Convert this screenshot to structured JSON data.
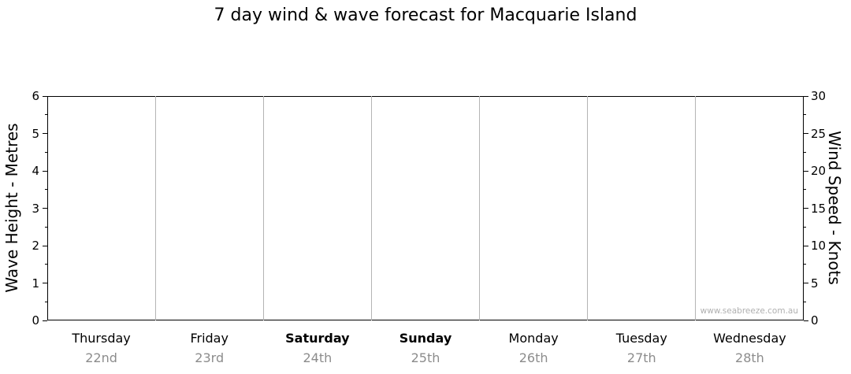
{
  "title": "7 day wind & wave forecast for Macquarie Island",
  "watermark": "www.seabreeze.com.au",
  "colors": {
    "axis": "#000000",
    "gridline": "#b4b4b4",
    "day_text": "#000000",
    "date_text": "#8c8c8c",
    "watermark_text": "#b0b0b0",
    "background": "#ffffff"
  },
  "chart_data": {
    "type": "line",
    "title": "7 day wind & wave forecast for Macquarie Island",
    "series": [],
    "days": [
      {
        "name": "Thursday",
        "date": "22nd",
        "bold": false
      },
      {
        "name": "Friday",
        "date": "23rd",
        "bold": false
      },
      {
        "name": "Saturday",
        "date": "24th",
        "bold": true
      },
      {
        "name": "Sunday",
        "date": "25th",
        "bold": true
      },
      {
        "name": "Monday",
        "date": "26th",
        "bold": false
      },
      {
        "name": "Tuesday",
        "date": "27th",
        "bold": false
      },
      {
        "name": "Wednesday",
        "date": "28th",
        "bold": false
      }
    ],
    "y_left": {
      "label": "Wave Height - Metres",
      "min": 0,
      "max": 6,
      "ticks": [
        0,
        1,
        2,
        3,
        4,
        5,
        6
      ]
    },
    "y_right": {
      "label": "Wind Speed - Knots",
      "min": 0,
      "max": 30,
      "ticks": [
        0,
        5,
        10,
        15,
        20,
        25,
        30
      ]
    },
    "grid": "vertical day separators only",
    "legend": "none"
  }
}
